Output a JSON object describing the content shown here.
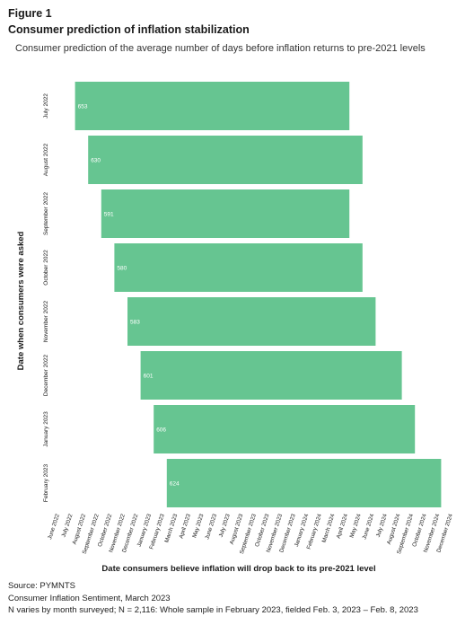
{
  "figure_label": "Figure 1",
  "chart_data": {
    "type": "bar",
    "orientation": "horizontal-floating",
    "title": "Consumer prediction of inflation stabilization",
    "subtitle": "Consumer prediction of the average number of days before inflation returns to pre-2021 levels",
    "xlabel": "Date consumers believe inflation will drop back to its pre-2021 level",
    "ylabel": "Date when consumers were asked",
    "categories": [
      "July 2022",
      "August 2022",
      "September 2022",
      "October 2022",
      "November 2022",
      "December 2022",
      "January 2023",
      "February 2023"
    ],
    "values": [
      653,
      630,
      591,
      580,
      583,
      601,
      606,
      624
    ],
    "bar_start": [
      "2022-07",
      "2022-08",
      "2022-09",
      "2022-10",
      "2022-11",
      "2022-12",
      "2023-01",
      "2023-02"
    ],
    "bar_end": [
      "2024-04",
      "2024-05",
      "2024-04",
      "2024-05",
      "2024-06",
      "2024-08",
      "2024-09",
      "2024-11"
    ],
    "x_ticks": [
      "June 2022",
      "July 2022",
      "August 2022",
      "September 2022",
      "October 2022",
      "November 2022",
      "December 2022",
      "January 2023",
      "February 2023",
      "March 2023",
      "April 2023",
      "May 2023",
      "June 2023",
      "July 2023",
      "August 2023",
      "September 2023",
      "October 2023",
      "November 2023",
      "December 2023",
      "January 2024",
      "February 2024",
      "March 2024",
      "April 2024",
      "May 2024",
      "June 2024",
      "July 2024",
      "August 2024",
      "September 2024",
      "October 2024",
      "November 2024",
      "December 2024"
    ],
    "xlim": [
      "2022-06",
      "2024-12"
    ],
    "bar_color": "#66c591",
    "value_label_color": "#ffffff",
    "grid": false,
    "legend": "none"
  },
  "notes": {
    "source": "Source: PYMNTS",
    "publication": "Consumer Inflation Sentiment, March 2023",
    "sample": "N varies by month surveyed; N = 2,116: Whole sample in February 2023, fielded Feb. 3, 2023 – Feb. 8, 2023"
  }
}
